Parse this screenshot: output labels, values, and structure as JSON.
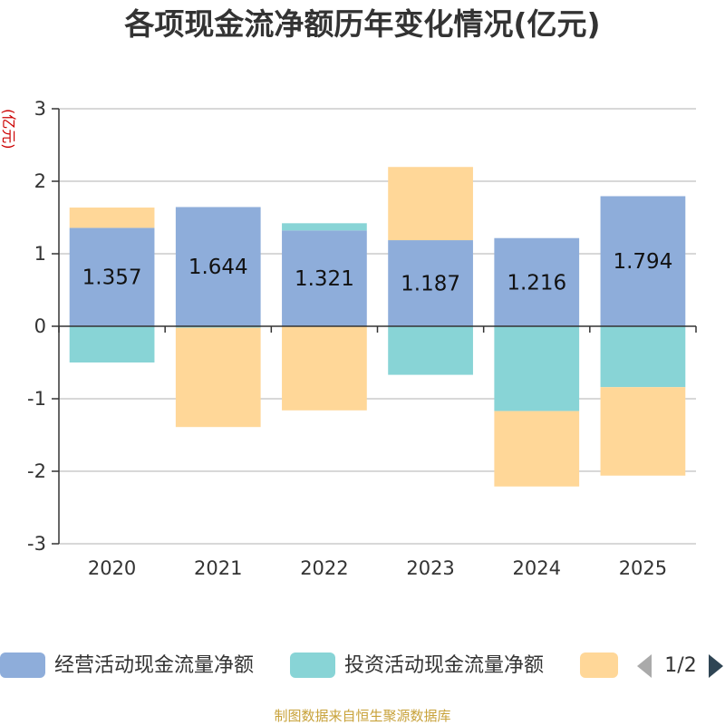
{
  "chart_data": {
    "type": "bar",
    "stacked": true,
    "title": "各项现金流净额历年变化情况(亿元)",
    "ylabel": "(亿元)",
    "xlabel": "",
    "ylim": [
      -3,
      3
    ],
    "yticks": [
      3,
      2,
      1,
      0,
      -1,
      -2,
      -3
    ],
    "categories": [
      "2020",
      "2021",
      "2022",
      "2023",
      "2024",
      "2025"
    ],
    "series": [
      {
        "name": "经营活动现金流量净额",
        "color": "#8eadda",
        "values": [
          1.357,
          1.644,
          1.321,
          1.187,
          1.216,
          1.794
        ],
        "labels": [
          "1.357",
          "1.644",
          "1.321",
          "1.187",
          "1.216",
          "1.794"
        ]
      },
      {
        "name": "投资活动现金流量净额",
        "color": "#88d4d6",
        "values": [
          -0.5,
          -0.02,
          0.1,
          -0.67,
          -1.17,
          -0.84
        ]
      },
      {
        "name": "",
        "color": "#ffd798",
        "values": [
          0.28,
          -1.37,
          -1.16,
          1.01,
          -1.04,
          -1.22
        ]
      }
    ],
    "legend": {
      "position": "bottom",
      "items": [
        "经营活动现金流量净额",
        "投资活动现金流量净额",
        ""
      ],
      "page": "1/2"
    },
    "source": "制图数据来自恒生聚源数据库"
  }
}
